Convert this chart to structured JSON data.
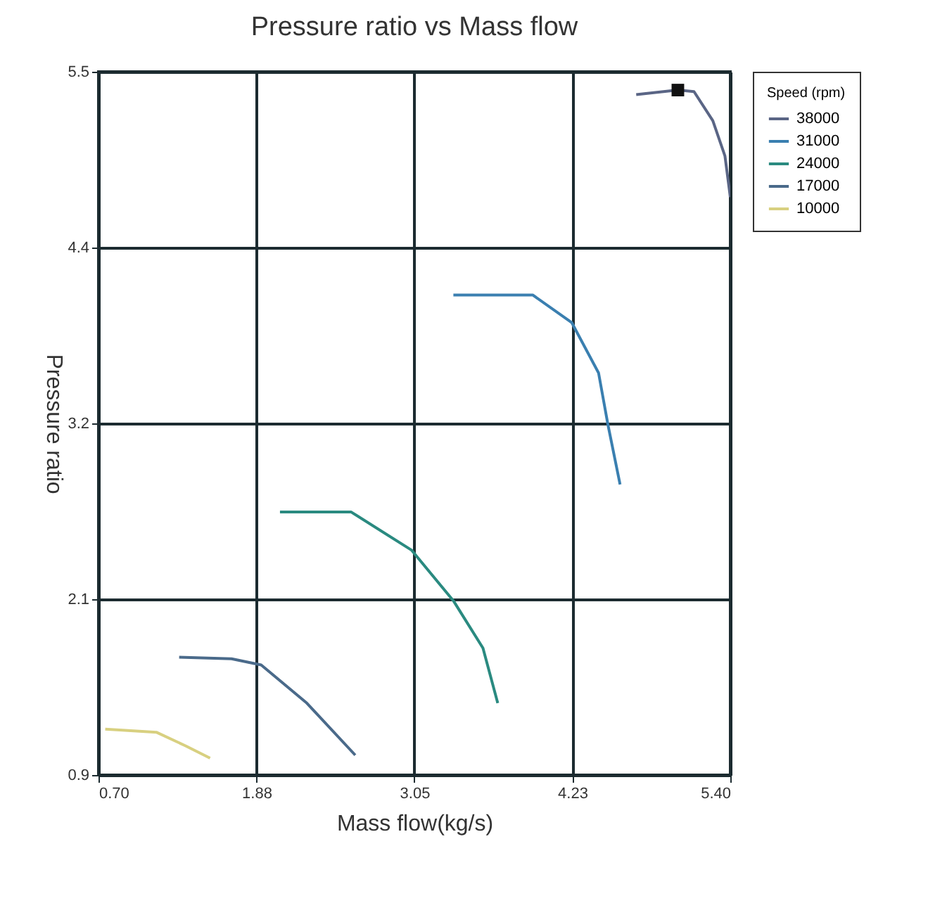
{
  "chart_data": {
    "type": "line",
    "title": "Pressure ratio vs Mass flow",
    "xlabel": "Mass flow(kg/s)",
    "ylabel": "Pressure ratio",
    "legend_title": "Speed (rpm)",
    "legend": "right",
    "grid": true,
    "line_style": "solid",
    "xlim": [
      0.7,
      5.4
    ],
    "xticks": [
      {
        "value": 0.7,
        "label": "0.70"
      },
      {
        "value": 1.875,
        "label": "1.88"
      },
      {
        "value": 3.05,
        "label": "3.05"
      },
      {
        "value": 4.225,
        "label": "4.23"
      },
      {
        "value": 5.4,
        "label": "5.40"
      }
    ],
    "ylim": [
      0.9,
      5.5
    ],
    "yticks": [
      0.9,
      {
        "value": 2.05,
        "label": "2.1"
      },
      3.2,
      {
        "value": 4.35,
        "label": "4.4"
      },
      5.5
    ],
    "series": [
      {
        "name": "38000",
        "color": "#5a6585",
        "x": [
          4.7,
          5.01,
          5.13,
          5.27,
          5.36,
          5.4
        ],
        "values": [
          5.35,
          5.38,
          5.37,
          5.18,
          4.95,
          4.68
        ]
      },
      {
        "name": "31000",
        "color": "#3a7fb0",
        "x": [
          3.34,
          3.93,
          4.22,
          4.42,
          4.49,
          4.58
        ],
        "values": [
          4.04,
          4.04,
          3.86,
          3.53,
          3.19,
          2.8
        ]
      },
      {
        "name": "24000",
        "color": "#2a8a80",
        "x": [
          2.05,
          2.58,
          3.03,
          3.34,
          3.56,
          3.67
        ],
        "values": [
          2.62,
          2.62,
          2.37,
          2.04,
          1.73,
          1.37
        ]
      },
      {
        "name": "17000",
        "color": "#4a6a8a",
        "x": [
          1.3,
          1.69,
          1.91,
          2.25,
          2.61
        ],
        "values": [
          1.67,
          1.66,
          1.62,
          1.37,
          1.03
        ]
      },
      {
        "name": "10000",
        "color": "#d8d080",
        "x": [
          0.75,
          1.13,
          1.35,
          1.53
        ],
        "values": [
          1.2,
          1.18,
          1.09,
          1.01
        ]
      },
      {
        "type": "scatter",
        "marker": "square",
        "color": "#111111",
        "x": [
          5.01
        ],
        "values": [
          5.38
        ]
      }
    ]
  }
}
